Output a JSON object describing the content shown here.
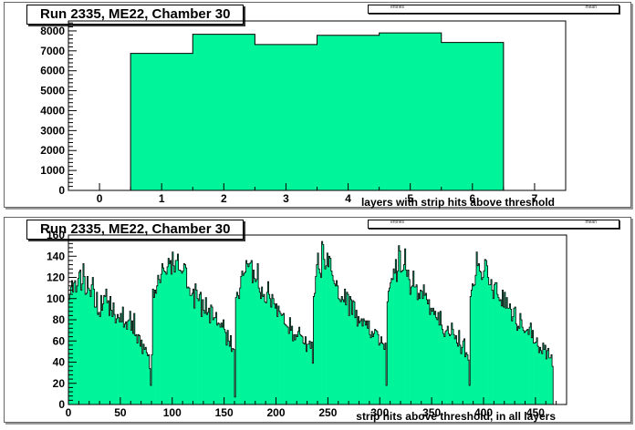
{
  "chart_data": [
    {
      "type": "bar",
      "title": "Run 2335, ME22, Chamber 30",
      "stats_labels": [
        "entries",
        "mean"
      ],
      "xlabel": "layers with strip hits above threshold",
      "xlim": [
        -0.5,
        7.5
      ],
      "ylim": [
        0,
        8500
      ],
      "xticks": [
        0,
        1,
        2,
        3,
        4,
        5,
        6,
        7
      ],
      "yticks": [
        0,
        1000,
        2000,
        3000,
        4000,
        5000,
        6000,
        7000,
        8000
      ],
      "bin_width": 1,
      "bins": [
        {
          "x": 1,
          "y": 6870
        },
        {
          "x": 2,
          "y": 7830
        },
        {
          "x": 3,
          "y": 7320
        },
        {
          "x": 4,
          "y": 7780
        },
        {
          "x": 5,
          "y": 7900
        },
        {
          "x": 6,
          "y": 7420
        }
      ],
      "fill_color": "#00f59a",
      "line_color": "#000000",
      "grid": false
    },
    {
      "type": "bar",
      "title": "Run 2335, ME22, Chamber 30",
      "stats_labels": [
        "entries",
        "mean"
      ],
      "xlabel": "strip hits above threshold, in all layers",
      "xlim": [
        0,
        480
      ],
      "ylim": [
        0,
        160
      ],
      "xticks": [
        0,
        50,
        100,
        150,
        200,
        250,
        300,
        350,
        400,
        450
      ],
      "yticks": [
        0,
        20,
        40,
        60,
        80,
        100,
        120,
        140,
        160
      ],
      "bin_width": 1,
      "bin_start": 0,
      "values": [
        99,
        104,
        111,
        117,
        106,
        115,
        117,
        106,
        112,
        119,
        125,
        127,
        108,
        114,
        133,
        121,
        104,
        105,
        121,
        110,
        108,
        102,
        113,
        120,
        109,
        92,
        92,
        106,
        85,
        87,
        83,
        103,
        89,
        95,
        103,
        102,
        109,
        96,
        98,
        84,
        102,
        89,
        83,
        96,
        85,
        77,
        81,
        85,
        82,
        78,
        86,
        78,
        92,
        73,
        76,
        78,
        71,
        79,
        80,
        88,
        70,
        79,
        67,
        86,
        65,
        66,
        58,
        66,
        65,
        55,
        61,
        48,
        57,
        52,
        54,
        49,
        46,
        47,
        34,
        18,
        47,
        109,
        101,
        108,
        105,
        112,
        122,
        118,
        115,
        123,
        133,
        129,
        126,
        125,
        123,
        130,
        138,
        133,
        136,
        123,
        144,
        131,
        125,
        136,
        136,
        142,
        127,
        127,
        126,
        124,
        126,
        133,
        132,
        129,
        110,
        111,
        110,
        103,
        103,
        105,
        109,
        91,
        114,
        108,
        100,
        98,
        104,
        106,
        83,
        99,
        89,
        86,
        101,
        85,
        87,
        91,
        77,
        94,
        92,
        80,
        82,
        82,
        87,
        75,
        77,
        76,
        73,
        77,
        73,
        80,
        71,
        68,
        56,
        70,
        60,
        55,
        65,
        50,
        53,
        52,
        7,
        101,
        106,
        103,
        100,
        110,
        121,
        126,
        122,
        124,
        125,
        136,
        133,
        130,
        133,
        134,
        136,
        115,
        127,
        119,
        116,
        118,
        133,
        110,
        106,
        100,
        111,
        102,
        104,
        97,
        96,
        106,
        116,
        104,
        100,
        92,
        104,
        100,
        95,
        91,
        95,
        83,
        93,
        88,
        86,
        84,
        85,
        86,
        76,
        75,
        74,
        73,
        67,
        82,
        70,
        74,
        60,
        66,
        61,
        66,
        64,
        69,
        73,
        66,
        65,
        64,
        58,
        57,
        64,
        50,
        57,
        57,
        60,
        53,
        59,
        39,
        102,
        105,
        121,
        132,
        143,
        128,
        124,
        120,
        154,
        151,
        137,
        128,
        131,
        143,
        130,
        140,
        138,
        126,
        122,
        117,
        114,
        112,
        117,
        112,
        100,
        99,
        97,
        102,
        99,
        97,
        109,
        94,
        106,
        104,
        84,
        102,
        99,
        85,
        98,
        97,
        82,
        89,
        74,
        83,
        77,
        79,
        81,
        74,
        81,
        79,
        75,
        79,
        72,
        79,
        66,
        63,
        69,
        64,
        67,
        71,
        70,
        69,
        66,
        56,
        58,
        64,
        58,
        57,
        52,
        58,
        18,
        97,
        107,
        110,
        115,
        119,
        118,
        128,
        124,
        137,
        116,
        126,
        150,
        145,
        125,
        126,
        127,
        132,
        147,
        127,
        121,
        127,
        118,
        104,
        111,
        112,
        126,
        111,
        111,
        113,
        99,
        105,
        100,
        108,
        107,
        100,
        113,
        103,
        105,
        99,
        95,
        99,
        85,
        91,
        88,
        91,
        85,
        88,
        82,
        80,
        87,
        75,
        88,
        75,
        71,
        67,
        64,
        69,
        70,
        74,
        67,
        65,
        66,
        77,
        71,
        66,
        62,
        65,
        58,
        55,
        70,
        56,
        48,
        54,
        60,
        62,
        45,
        49,
        47,
        42,
        18,
        102,
        108,
        114,
        112,
        113,
        122,
        144,
        131,
        133,
        126,
        125,
        118,
        120,
        126,
        137,
        136,
        131,
        120,
        113,
        113,
        118,
        108,
        100,
        113,
        115,
        115,
        104,
        101,
        98,
        99,
        93,
        108,
        92,
        106,
        91,
        101,
        91,
        91,
        95,
        90,
        79,
        83,
        91,
        92,
        76,
        70,
        74,
        72,
        86,
        80,
        73,
        70,
        68,
        69,
        70,
        71,
        66,
        73,
        77,
        63,
        70,
        58,
        58,
        59,
        63,
        55,
        49,
        54,
        51,
        48,
        58,
        52,
        56,
        43,
        51,
        53,
        44,
        44,
        47,
        36
      ],
      "fill_color": "#00f59a",
      "line_color": "#000000",
      "grid": false
    }
  ]
}
